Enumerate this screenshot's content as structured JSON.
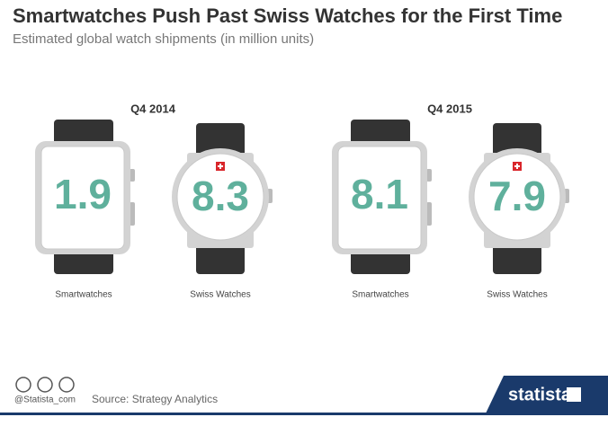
{
  "chart_data": {
    "type": "watch",
    "title": "Smartwatches Push Past Swiss Watches for the First Time",
    "subtitle": "Estimated global watch shipments (in million units)",
    "categories": [
      "Q4 2014",
      "Q4 2015"
    ],
    "series": [
      {
        "name": "Smartwatches",
        "color": "#5fb09c",
        "values": [
          1.9,
          8.1
        ]
      },
      {
        "name": "Swiss Watches",
        "color": "#5fb09c",
        "values": [
          8.3,
          7.9
        ]
      }
    ],
    "source": "Source: Strategy Analytics",
    "handle": "@Statista_com",
    "brand": "statista"
  }
}
